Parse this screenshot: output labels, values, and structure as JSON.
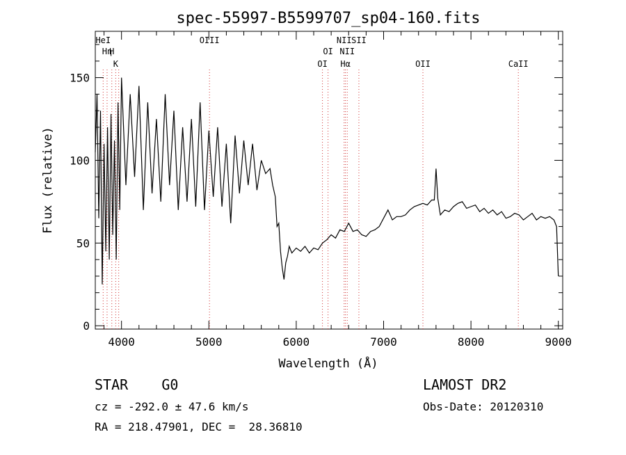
{
  "chart_data": {
    "type": "line",
    "title": "spec-55997-B5599707_sp04-160.fits",
    "xlabel": "Wavelength (Å)",
    "ylabel": "Flux (relative)",
    "xlim": [
      3700,
      9050
    ],
    "ylim": [
      -2,
      178
    ],
    "x_ticks": [
      4000,
      5000,
      6000,
      7000,
      8000,
      9000
    ],
    "y_ticks": [
      0,
      50,
      100,
      150
    ],
    "grid": false,
    "series": [
      {
        "color": "#000000",
        "x": [
          3700,
          3720,
          3740,
          3760,
          3780,
          3800,
          3820,
          3840,
          3860,
          3880,
          3900,
          3920,
          3940,
          3960,
          3980,
          4000,
          4050,
          4100,
          4150,
          4200,
          4250,
          4300,
          4350,
          4400,
          4450,
          4500,
          4550,
          4600,
          4650,
          4700,
          4750,
          4800,
          4850,
          4900,
          4950,
          5000,
          5050,
          5100,
          5150,
          5200,
          5250,
          5300,
          5350,
          5400,
          5450,
          5500,
          5550,
          5600,
          5650,
          5700,
          5730,
          5760,
          5780,
          5800,
          5820,
          5840,
          5860,
          5880,
          5900,
          5920,
          5950,
          6000,
          6050,
          6100,
          6150,
          6200,
          6250,
          6300,
          6350,
          6400,
          6450,
          6500,
          6550,
          6600,
          6650,
          6700,
          6750,
          6800,
          6850,
          6900,
          6950,
          7000,
          7050,
          7100,
          7150,
          7200,
          7250,
          7300,
          7350,
          7400,
          7450,
          7500,
          7550,
          7580,
          7600,
          7620,
          7650,
          7700,
          7750,
          7800,
          7850,
          7900,
          7950,
          8000,
          8050,
          8100,
          8150,
          8200,
          8250,
          8300,
          8350,
          8400,
          8450,
          8500,
          8550,
          8600,
          8650,
          8700,
          8750,
          8800,
          8850,
          8900,
          8950,
          8980,
          9000
        ],
        "values": [
          105,
          140,
          65,
          130,
          25,
          110,
          45,
          120,
          40,
          128,
          55,
          112,
          40,
          135,
          70,
          150,
          85,
          140,
          90,
          145,
          70,
          135,
          80,
          125,
          75,
          140,
          85,
          130,
          70,
          120,
          75,
          125,
          72,
          135,
          70,
          118,
          78,
          120,
          72,
          110,
          62,
          115,
          80,
          112,
          85,
          110,
          82,
          100,
          92,
          95,
          85,
          78,
          60,
          62,
          45,
          35,
          28,
          38,
          42,
          48,
          44,
          47,
          45,
          48,
          44,
          47,
          46,
          50,
          52,
          55,
          53,
          58,
          57,
          62,
          57,
          58,
          55,
          54,
          57,
          58,
          60,
          65,
          70,
          64,
          66,
          66,
          67,
          70,
          72,
          73,
          74,
          73,
          76,
          76,
          95,
          77,
          67,
          70,
          69,
          72,
          74,
          75,
          71,
          72,
          73,
          69,
          71,
          68,
          70,
          67,
          69,
          65,
          66,
          68,
          67,
          64,
          66,
          68,
          64,
          66,
          65,
          66,
          64,
          60,
          30
        ]
      }
    ],
    "lines": [
      {
        "x": 3790,
        "label": "HeI",
        "row": 1
      },
      {
        "x": 3835,
        "label": "Hη",
        "row": 2
      },
      {
        "x": 3889,
        "label": "H",
        "row": 2
      },
      {
        "x": 3934,
        "label": "K",
        "row": 3
      },
      {
        "x": 3968,
        "label": "",
        "row": 0
      },
      {
        "x": 5007,
        "label": "OIII",
        "row": 1
      },
      {
        "x": 6300,
        "label": "OI",
        "row": 3
      },
      {
        "x": 6364,
        "label": "OI",
        "row": 2
      },
      {
        "x": 6548,
        "label": "NII",
        "row": 1
      },
      {
        "x": 6563,
        "label": "Hα",
        "row": 3
      },
      {
        "x": 6584,
        "label": "NII",
        "row": 2
      },
      {
        "x": 6717,
        "label": "SII",
        "row": 1
      },
      {
        "x": 7450,
        "label": "OII",
        "row": 3
      },
      {
        "x": 8542,
        "label": "CaII",
        "row": 3
      }
    ]
  },
  "info": {
    "object": "STAR    G0",
    "cz": "cz = -292.0 ± 47.6 km/s",
    "coords": "RA = 218.47901, DEC =  28.36810",
    "survey": "LAMOST DR2",
    "obs_date": "Obs-Date: 20120310"
  }
}
